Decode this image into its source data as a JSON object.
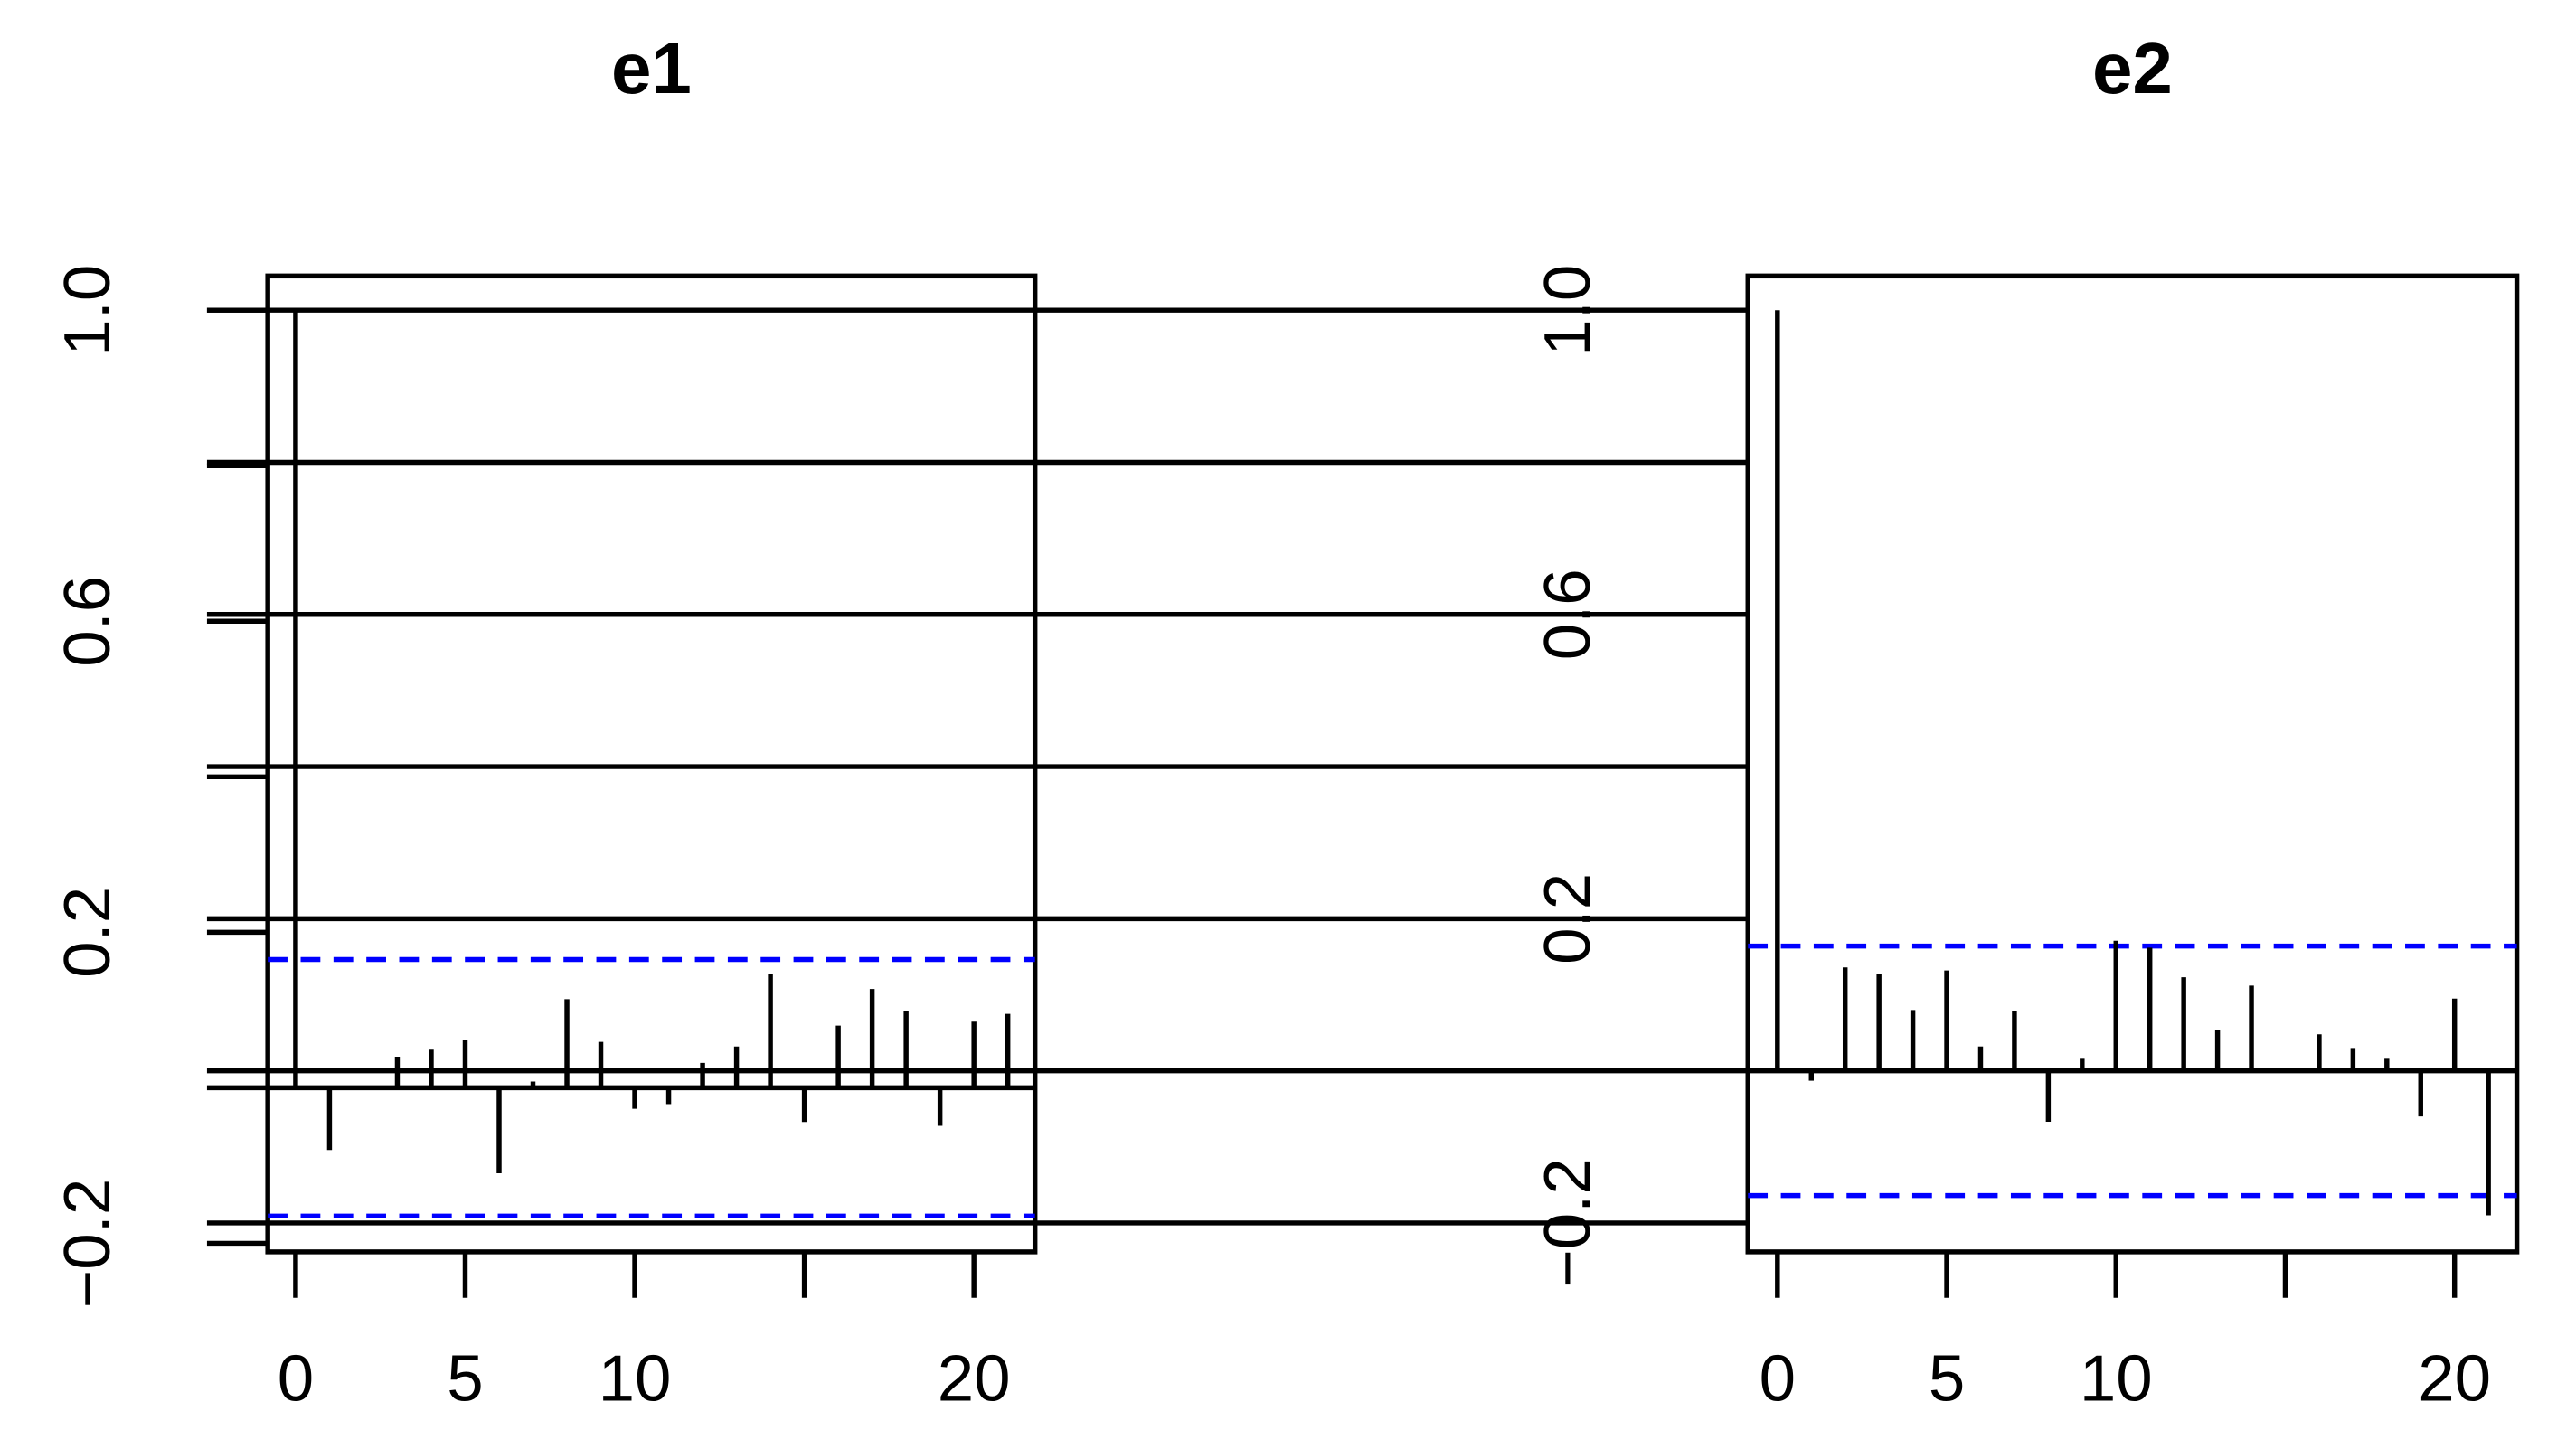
{
  "chart_data": [
    {
      "type": "acf",
      "title": "e1",
      "x": [
        0,
        1,
        2,
        3,
        4,
        5,
        6,
        7,
        8,
        9,
        10,
        11,
        12,
        13,
        14,
        15,
        16,
        17,
        18,
        19,
        20,
        21
      ],
      "values": [
        1.0,
        -0.08,
        0.0,
        0.04,
        0.049,
        0.061,
        -0.11,
        0.008,
        0.114,
        0.059,
        -0.027,
        -0.021,
        0.032,
        0.053,
        0.146,
        -0.044,
        0.08,
        0.127,
        0.099,
        -0.049,
        0.085,
        0.095
      ],
      "color": "#000000",
      "ci": [
        -0.165,
        0.165
      ],
      "ci_color": "#0000ff",
      "xlim": [
        -0.82,
        21.8
      ],
      "ylim": [
        -0.211,
        1.044
      ],
      "xticks": [
        0,
        5,
        10,
        {
          "value": 15,
          "label": null
        },
        20
      ],
      "yticks": [
        {
          "value": -0.2,
          "label": "−0.2"
        },
        {
          "value": 0,
          "label": null
        },
        0.2,
        {
          "value": 0.4,
          "label": null
        },
        0.6,
        {
          "value": 0.8,
          "label": null
        },
        {
          "value": 1.0,
          "label": "1.0"
        }
      ]
    },
    {
      "type": "acf",
      "title": "e2",
      "x": [
        0,
        1,
        2,
        3,
        4,
        5,
        6,
        7,
        8,
        9,
        10,
        11,
        12,
        13,
        14,
        15,
        16,
        17,
        18,
        19,
        20,
        21
      ],
      "values": [
        1.0,
        -0.013,
        0.136,
        0.127,
        0.08,
        0.132,
        0.032,
        0.078,
        -0.067,
        0.017,
        0.171,
        0.162,
        0.123,
        0.054,
        0.112,
        0.002,
        0.048,
        0.03,
        0.017,
        -0.06,
        0.095,
        -0.19
      ],
      "color": "#000000",
      "ci": [
        -0.164,
        0.164
      ],
      "ci_color": "#0000ff",
      "xlim": [
        -0.87,
        21.84
      ],
      "ylim": [
        -0.238,
        1.045
      ],
      "xticks": [
        0,
        5,
        10,
        {
          "value": 15,
          "label": null
        },
        20
      ],
      "yticks": [
        {
          "value": -0.2,
          "label": "−0.2"
        },
        {
          "value": 0,
          "label": null
        },
        0.2,
        {
          "value": 0.4,
          "label": null
        },
        0.6,
        {
          "value": 0.8,
          "label": null
        },
        {
          "value": 1.0,
          "label": "1.0"
        }
      ]
    }
  ]
}
